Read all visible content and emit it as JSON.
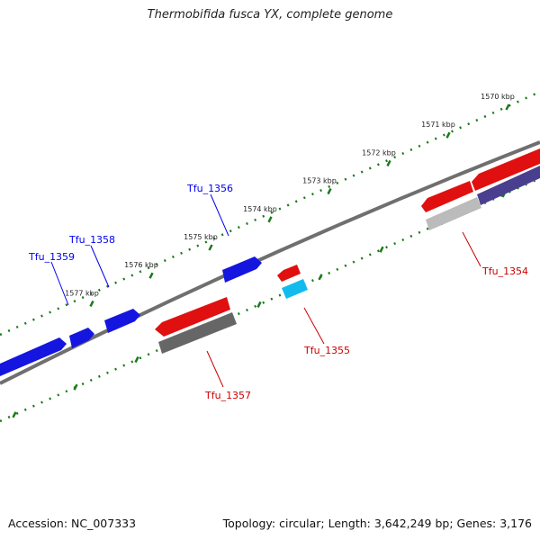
{
  "title": "Thermobifida fusca YX, complete genome",
  "footer": {
    "accession": "Accession: NC_007333",
    "info": "Topology: circular; Length: 3,642,249 bp; Genes: 3,176"
  },
  "ticks": [
    {
      "label": "1570 kbp",
      "t": 0.0
    },
    {
      "label": "1571 kbp",
      "t": 1.0
    },
    {
      "label": "1572 kbp",
      "t": 2.0
    },
    {
      "label": "1573 kbp",
      "t": 3.0
    },
    {
      "label": "1574 kbp",
      "t": 4.0
    },
    {
      "label": "1575 kbp",
      "t": 5.0
    },
    {
      "label": "1576 kbp",
      "t": 6.0
    },
    {
      "label": "1577 kbp",
      "t": 7.0
    }
  ],
  "genes_top": [
    {
      "label": "Tfu_1356",
      "color": "#0000ee"
    },
    {
      "label": "Tfu_1358",
      "color": "#0000ee"
    },
    {
      "label": "Tfu_1359",
      "color": "#0000ee"
    }
  ],
  "genes_bottom": [
    {
      "label": "Tfu_1354",
      "color": "#cc0000"
    },
    {
      "label": "Tfu_1355",
      "color": "#cc0000"
    },
    {
      "label": "Tfu_1357",
      "color": "#cc0000"
    }
  ],
  "colors": {
    "forward_gene": "#1515e0",
    "reverse_gene": "#e01010",
    "rna_gene": "#11bbee",
    "gray_feature": "#666666",
    "light_gray_feature": "#bbbbbb",
    "purple_feature": "#4a3f8f",
    "tick_dots": "#1a7a1a",
    "backbone": "#707070"
  }
}
